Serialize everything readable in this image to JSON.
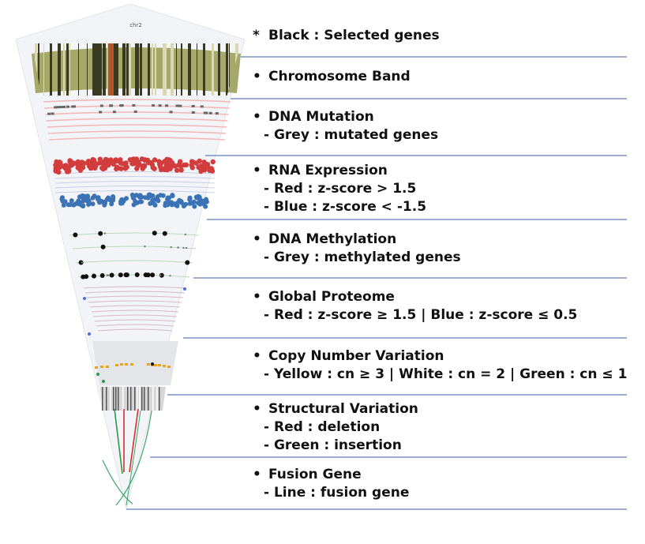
{
  "diagram": {
    "chromosome_label": "chr2",
    "colors": {
      "separator": "#3b5ea8",
      "band_base": "#a6a86a",
      "band_dark": "#3a3a22",
      "band_selected": "#b4552a",
      "mutation": "#666666",
      "rna_red": "#d33c3c",
      "rna_blue": "#3b73b5",
      "methylation": "#111111",
      "cnv_yellow": "#e8a418",
      "cnv_green": "#2a9a4a",
      "sv_red": "#d33030",
      "sv_green": "#2a9a4a"
    }
  },
  "legend": [
    {
      "bullet": "*",
      "title": "Black : Selected genes",
      "details": []
    },
    {
      "bullet": "•",
      "title": "Chromosome Band",
      "details": []
    },
    {
      "bullet": "•",
      "title": "DNA Mutation",
      "details": [
        "- Grey : mutated genes"
      ]
    },
    {
      "bullet": "•",
      "title": "RNA Expression",
      "details": [
        "- Red : z-score > 1.5",
        "- Blue : z-score < -1.5"
      ]
    },
    {
      "bullet": "•",
      "title": "DNA Methylation",
      "details": [
        "- Grey : methylated genes"
      ]
    },
    {
      "bullet": "•",
      "title": "Global Proteome",
      "details": [
        "- Red : z-score ≥ 1.5 | Blue : z-score ≤ 0.5"
      ]
    },
    {
      "bullet": "•",
      "title": "Copy Number Variation",
      "details": [
        "- Yellow : cn ≥ 3 | White : cn = 2 | Green : cn ≤ 1"
      ]
    },
    {
      "bullet": "•",
      "title": "Structural Variation",
      "details": [
        "- Red : deletion",
        "- Green : insertion"
      ]
    },
    {
      "bullet": "•",
      "title": "Fusion Gene",
      "details": [
        "- Line : fusion gene"
      ]
    }
  ]
}
